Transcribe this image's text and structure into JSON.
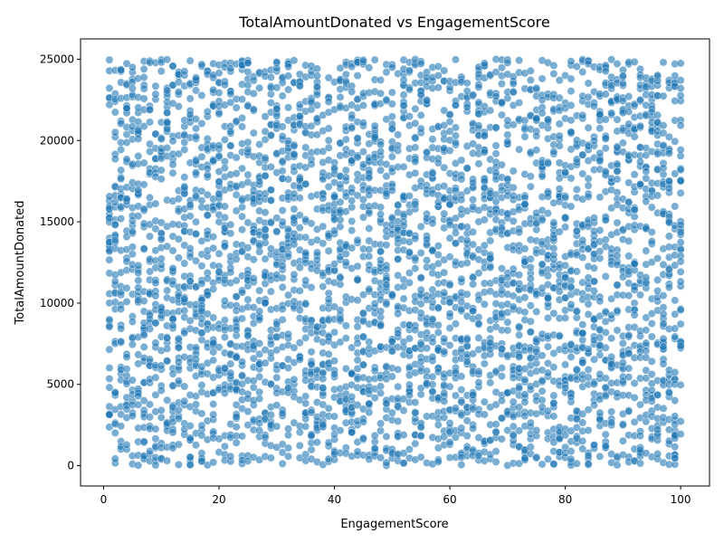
{
  "chart_data": {
    "type": "scatter",
    "title": "TotalAmountDonated vs EngagementScore",
    "xlabel": "EngagementScore",
    "ylabel": "TotalAmountDonated",
    "xlim": [
      -4,
      105
    ],
    "ylim": [
      -1250,
      26250
    ],
    "xticks": [
      0,
      20,
      40,
      60,
      80,
      100
    ],
    "yticks": [
      0,
      5000,
      10000,
      15000,
      20000,
      25000
    ],
    "grid": false,
    "legend": "none",
    "series": [
      {
        "color": "#1f77b4",
        "alpha": 0.6,
        "x_values": [
          1,
          2,
          3,
          4,
          5,
          6,
          7,
          8,
          9,
          10,
          11,
          12,
          13,
          14,
          15,
          16,
          17,
          18,
          19,
          20,
          21,
          22,
          23,
          24,
          25,
          26,
          27,
          28,
          29,
          30,
          31,
          32,
          33,
          34,
          35,
          36,
          37,
          38,
          39,
          40,
          41,
          42,
          43,
          44,
          45,
          46,
          47,
          48,
          49,
          50,
          51,
          52,
          53,
          54,
          55,
          56,
          57,
          58,
          59,
          60,
          61,
          62,
          63,
          64,
          65,
          66,
          67,
          68,
          69,
          70,
          71,
          72,
          73,
          74,
          75,
          76,
          77,
          78,
          79,
          80,
          81,
          82,
          83,
          84,
          85,
          86,
          87,
          88,
          89,
          90,
          91,
          92,
          93,
          94,
          95,
          96,
          97,
          98,
          99,
          100
        ],
        "y_min": 0,
        "y_max": 25000,
        "points_per_x": 40,
        "distribution": "uniform"
      }
    ]
  }
}
